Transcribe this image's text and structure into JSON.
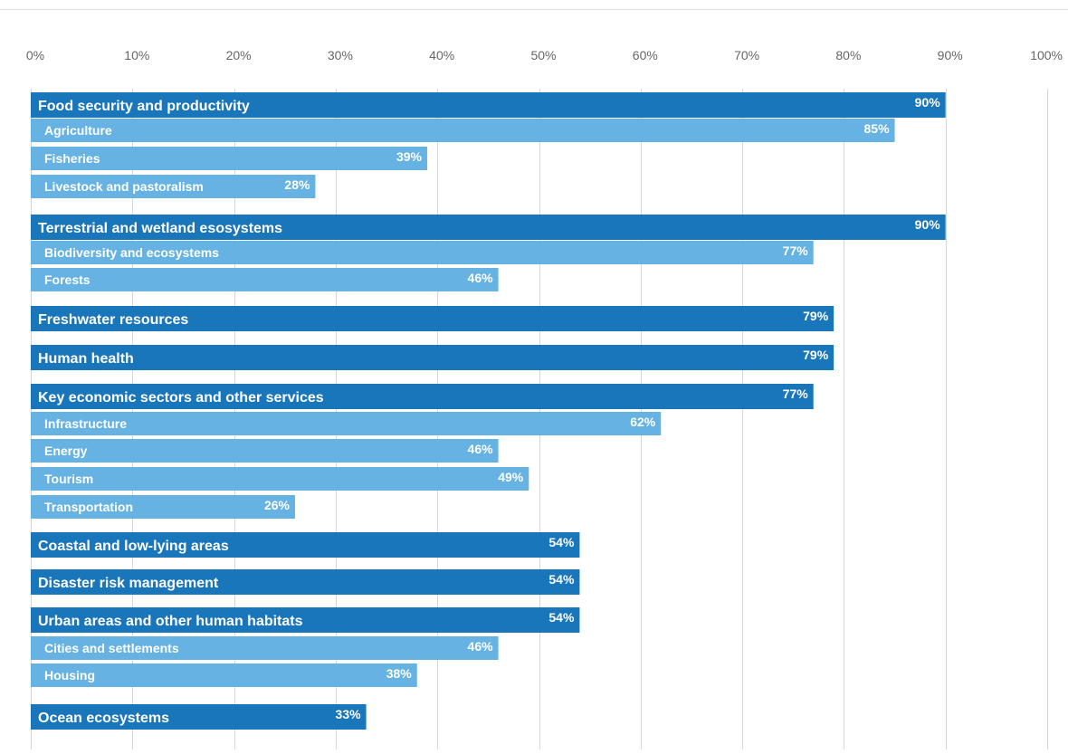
{
  "chart_data": {
    "type": "bar",
    "orientation": "horizontal",
    "title": "",
    "xlabel": "",
    "ylabel": "",
    "xlim": [
      0,
      100
    ],
    "x_ticks": [
      "0%",
      "10%",
      "20%",
      "30%",
      "40%",
      "50%",
      "60%",
      "70%",
      "80%",
      "90%",
      "100%"
    ],
    "grid": true,
    "colors": {
      "category": "#1a76bb",
      "subcategory": "#66b3e3",
      "grid": "#d6d6d6",
      "tick_text": "#666666",
      "label_text": "#ffffff"
    },
    "bars": [
      {
        "label": "Food security and productivity",
        "value": 90,
        "value_label": "90%",
        "level": "category"
      },
      {
        "label": "Agriculture",
        "value": 85,
        "value_label": "85%",
        "level": "subcategory"
      },
      {
        "label": "Fisheries",
        "value": 39,
        "value_label": "39%",
        "level": "subcategory"
      },
      {
        "label": "Livestock and pastoralism",
        "value": 28,
        "value_label": "28%",
        "level": "subcategory"
      },
      {
        "label": "Terrestrial and wetland esosystems",
        "value": 90,
        "value_label": "90%",
        "level": "category"
      },
      {
        "label": "Biodiversity and ecosystems",
        "value": 77,
        "value_label": "77%",
        "level": "subcategory"
      },
      {
        "label": "Forests",
        "value": 46,
        "value_label": "46%",
        "level": "subcategory"
      },
      {
        "label": "Freshwater resources",
        "value": 79,
        "value_label": "79%",
        "level": "category"
      },
      {
        "label": "Human health",
        "value": 79,
        "value_label": "79%",
        "level": "category"
      },
      {
        "label": "Key economic sectors and other services",
        "value": 77,
        "value_label": "77%",
        "level": "category"
      },
      {
        "label": "Infrastructure",
        "value": 62,
        "value_label": "62%",
        "level": "subcategory"
      },
      {
        "label": "Energy",
        "value": 46,
        "value_label": "46%",
        "level": "subcategory"
      },
      {
        "label": "Tourism",
        "value": 49,
        "value_label": "49%",
        "level": "subcategory"
      },
      {
        "label": "Transportation",
        "value": 26,
        "value_label": "26%",
        "level": "subcategory"
      },
      {
        "label": "Coastal and low-lying areas",
        "value": 54,
        "value_label": "54%",
        "level": "category"
      },
      {
        "label": "Disaster risk management",
        "value": 54,
        "value_label": "54%",
        "level": "category"
      },
      {
        "label": "Urban areas and other human habitats",
        "value": 54,
        "value_label": "54%",
        "level": "category"
      },
      {
        "label": "Cities and settlements",
        "value": 46,
        "value_label": "46%",
        "level": "subcategory"
      },
      {
        "label": "Housing",
        "value": 38,
        "value_label": "38%",
        "level": "subcategory"
      },
      {
        "label": "Ocean ecosystems",
        "value": 33,
        "value_label": "33%",
        "level": "category"
      }
    ]
  }
}
